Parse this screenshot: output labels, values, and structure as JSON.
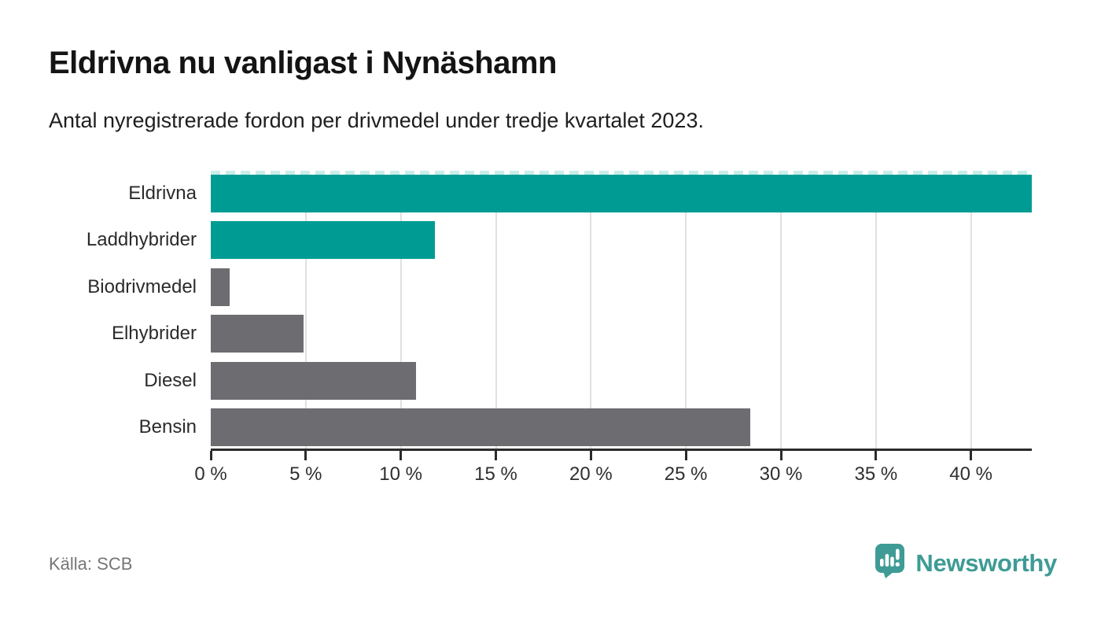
{
  "header": {
    "title": "Eldrivna nu vanligast i Nynäshamn",
    "subtitle": "Antal nyregistrerade fordon per drivmedel under tredje kvartalet 2023."
  },
  "chart_data": {
    "type": "bar",
    "orientation": "horizontal",
    "title": "Eldrivna nu vanligast i Nynäshamn",
    "subtitle": "Antal nyregistrerade fordon per drivmedel under tredje kvartalet 2023.",
    "categories": [
      "Eldrivna",
      "Laddhybrider",
      "Biodrivmedel",
      "Elhybrider",
      "Diesel",
      "Bensin"
    ],
    "values": [
      43.2,
      11.8,
      1.0,
      4.9,
      10.8,
      28.4
    ],
    "unit": "%",
    "bar_colors": [
      "#009c94",
      "#009c94",
      "#6c6c71",
      "#6c6c71",
      "#6c6c71",
      "#6c6c71"
    ],
    "highlight_categories": [
      "Eldrivna",
      "Laddhybrider"
    ],
    "xlim": [
      0,
      43.2
    ],
    "x_ticks": [
      0,
      5,
      10,
      15,
      20,
      25,
      30,
      35,
      40
    ],
    "x_tick_labels": [
      "0 %",
      "5 %",
      "10 %",
      "15 %",
      "20 %",
      "25 %",
      "30 %",
      "35 %",
      "40 %"
    ],
    "grid": "vertical",
    "first_bar_clipped": true,
    "legend_position": "none"
  },
  "footer": {
    "source": "Källa: SCB",
    "logo_text": "Newsworthy"
  },
  "colors": {
    "highlight": "#009c94",
    "muted": "#6c6c71",
    "axis": "#2b2b2b",
    "grid": "#e0e0e0",
    "cut_dash": "#c8edea",
    "logo": "#3e9b95",
    "source_text": "#767676"
  }
}
